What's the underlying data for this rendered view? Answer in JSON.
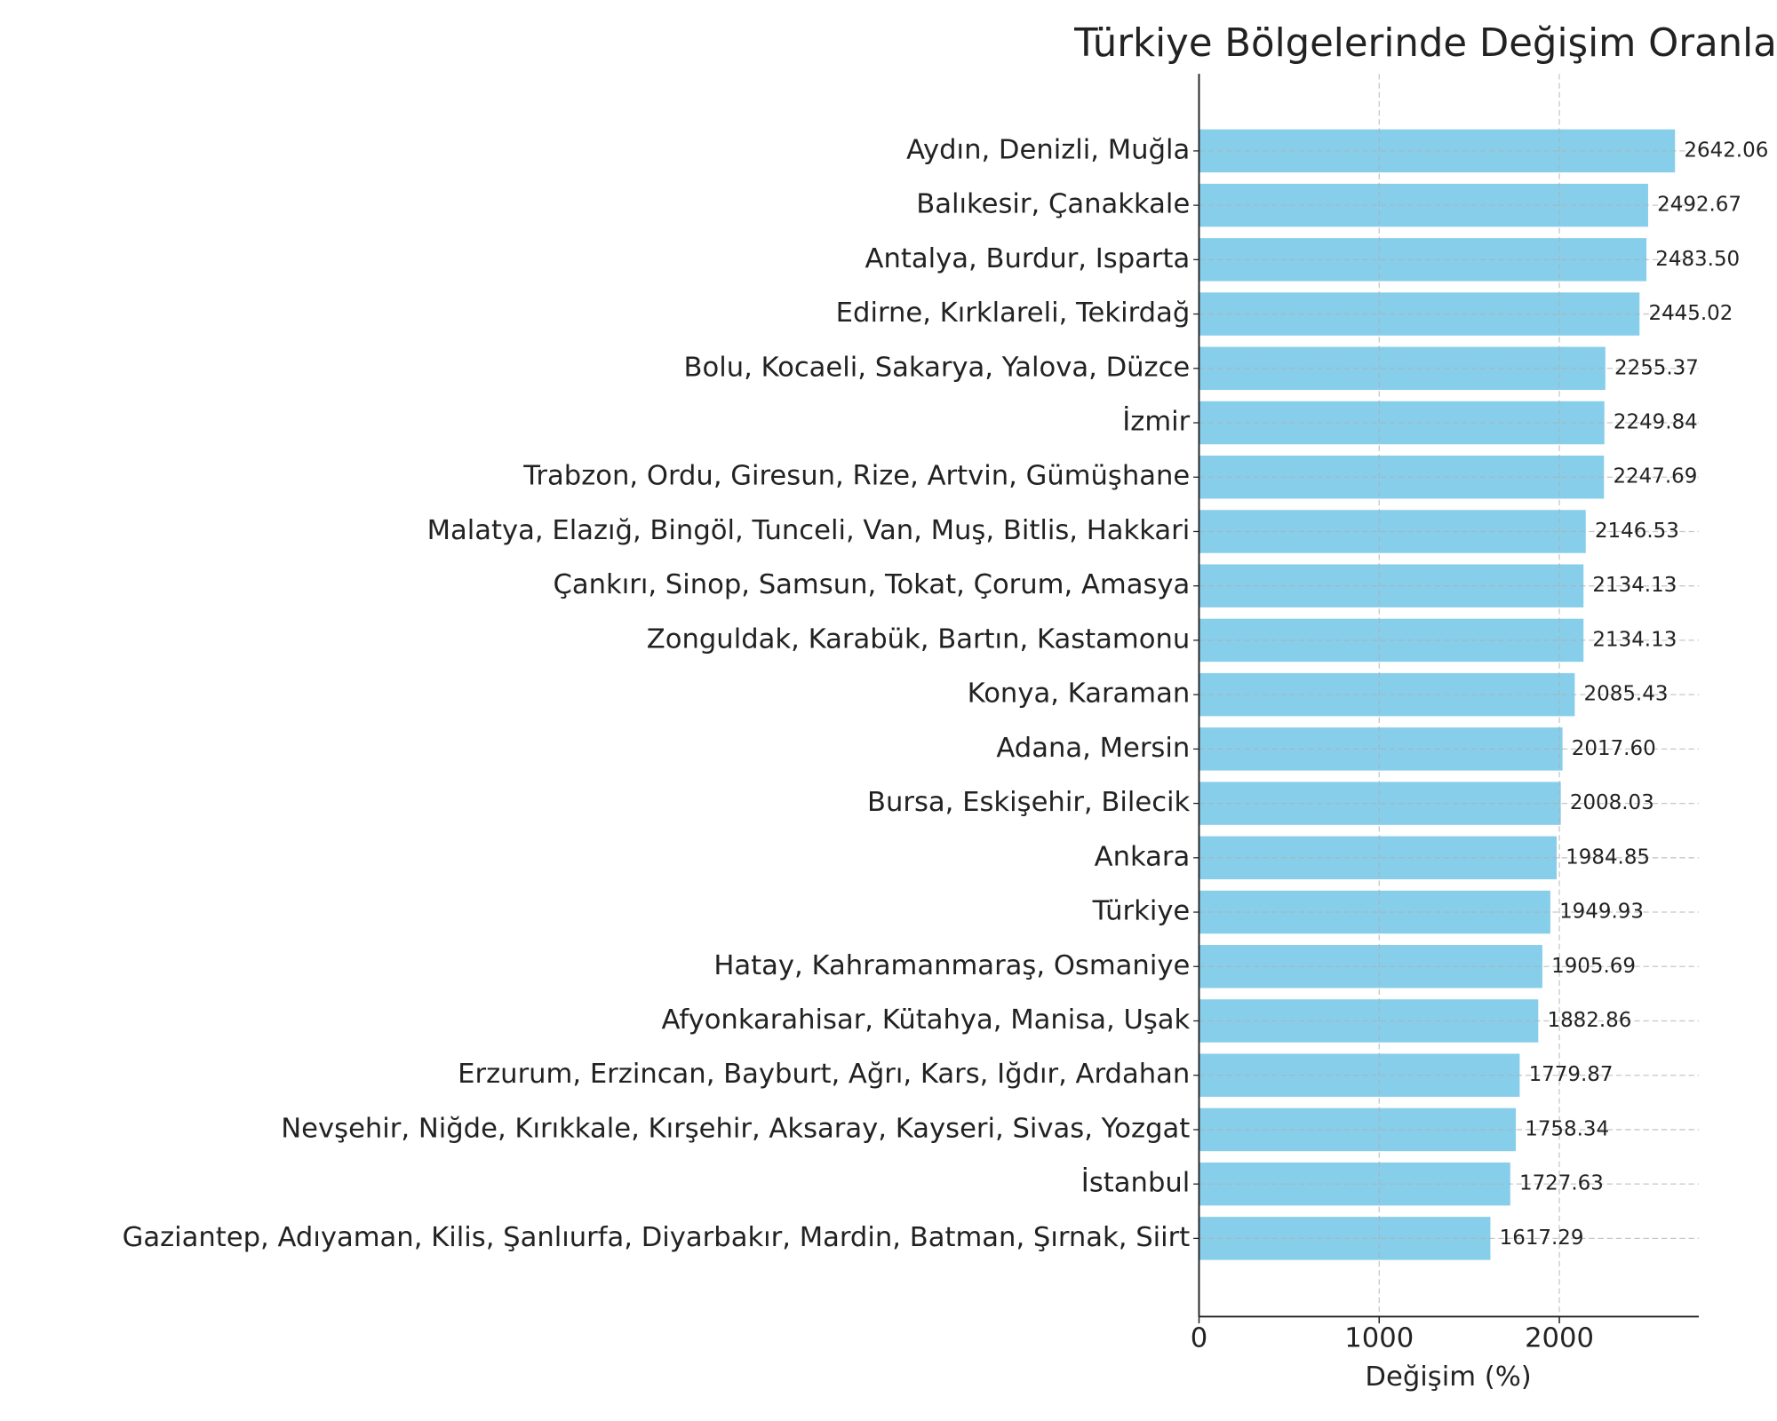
{
  "chart_data": {
    "type": "barh",
    "title": "Türkiye Bölgelerinde Değişim Oranla",
    "xlabel": "Değişim (%)",
    "categories": [
      "Aydın, Denizli, Muğla",
      "Balıkesir, Çanakkale",
      "Antalya, Burdur, Isparta",
      "Edirne, Kırklareli, Tekirdağ",
      "Bolu, Kocaeli, Sakarya, Yalova, Düzce",
      "İzmir",
      "Trabzon, Ordu, Giresun, Rize, Artvin, Gümüşhane",
      "Malatya, Elazığ, Bingöl, Tunceli, Van, Muş, Bitlis, Hakkari",
      "Çankırı, Sinop, Samsun, Tokat, Çorum, Amasya",
      "Zonguldak, Karabük, Bartın, Kastamonu",
      "Konya, Karaman",
      "Adana, Mersin",
      "Bursa, Eskişehir, Bilecik",
      "Ankara",
      "Türkiye",
      "Hatay, Kahramanmaraş, Osmaniye",
      "Afyonkarahisar, Kütahya, Manisa, Uşak",
      "Erzurum, Erzincan, Bayburt, Ağrı, Kars, Iğdır, Ardahan",
      "Nevşehir, Niğde, Kırıkkale, Kırşehir, Aksaray, Kayseri, Sivas, Yozgat",
      "İstanbul",
      "Gaziantep, Adıyaman, Kilis, Şanlıurfa, Diyarbakır, Mardin, Batman, Şırnak, Siirt"
    ],
    "values": [
      2642.06,
      2492.67,
      2483.5,
      2445.02,
      2255.37,
      2249.84,
      2247.69,
      2146.53,
      2134.13,
      2134.13,
      2085.43,
      2017.6,
      2008.03,
      1984.85,
      1949.93,
      1905.69,
      1882.86,
      1779.87,
      1758.34,
      1727.63,
      1617.29
    ],
    "value_labels": [
      "2642.06",
      "2492.67",
      "2483.50",
      "2445.02",
      "2255.37",
      "2249.84",
      "2247.69",
      "2146.53",
      "2134.13",
      "2134.13",
      "2085.43",
      "2017.60",
      "2008.03",
      "1984.85",
      "1949.93",
      "1905.69",
      "1882.86",
      "1779.87",
      "1758.34",
      "1727.63",
      "1617.29"
    ],
    "color": "#87ceeb",
    "xlim": [
      0,
      2774
    ],
    "xticks": [
      0,
      1000,
      2000
    ],
    "grid": true
  }
}
